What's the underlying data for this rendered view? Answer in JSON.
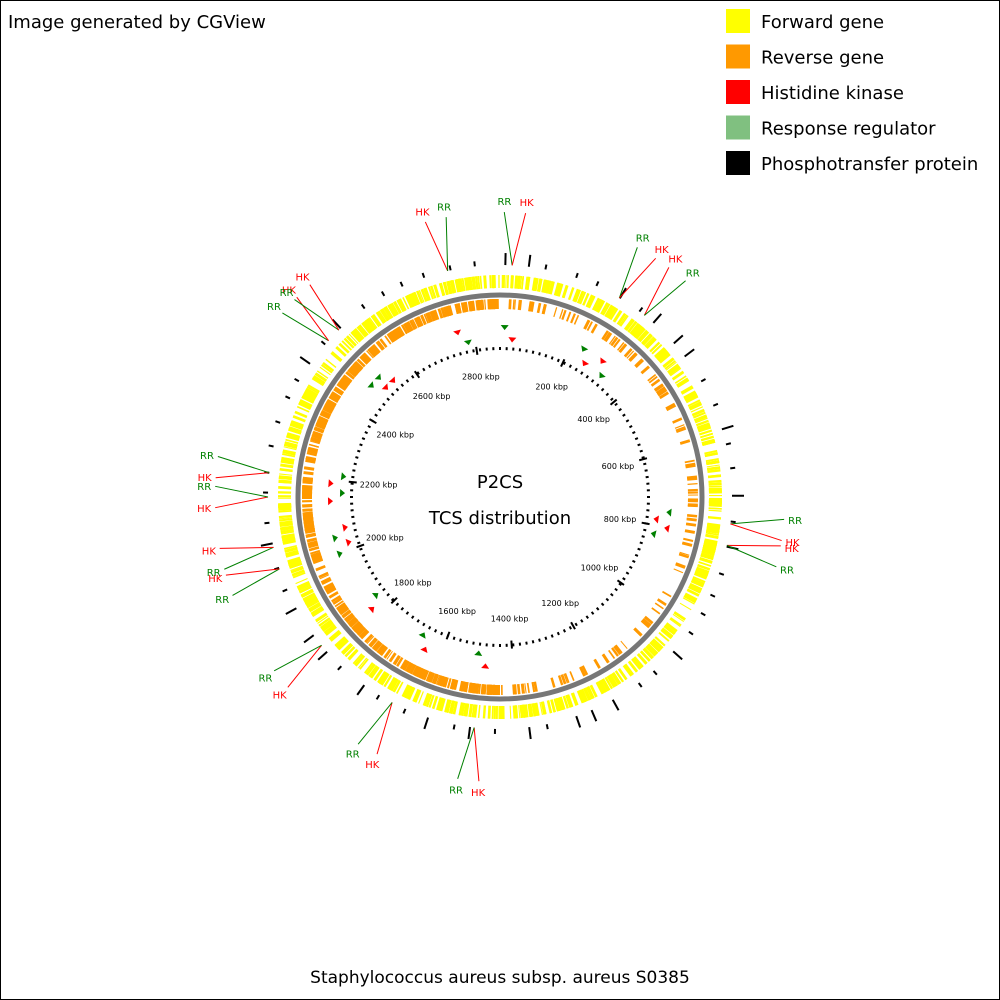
{
  "header": {
    "title": "Image generated by CGView"
  },
  "legend": [
    {
      "label": "Forward gene",
      "color": "#ffff00"
    },
    {
      "label": "Reverse gene",
      "color": "#ff9900"
    },
    {
      "label": "Histidine kinase",
      "color": "#ff0000"
    },
    {
      "label": "Response regulator",
      "color": "#80c080"
    },
    {
      "label": "Phosphotransfer protein",
      "color": "#000000"
    }
  ],
  "map": {
    "title": "P2CS",
    "subtitle": "TCS distribution",
    "lim": [
      0,
      2872
    ],
    "ticks": [
      {
        "value": 200,
        "label": "200 kbp"
      },
      {
        "value": 400,
        "label": "400 kbp"
      },
      {
        "value": 600,
        "label": "600 kbp"
      },
      {
        "value": 800,
        "label": "800 kbp"
      },
      {
        "value": 1000,
        "label": "1000 kbp"
      },
      {
        "value": 1200,
        "label": "1200 kbp"
      },
      {
        "value": 1400,
        "label": "1400 kbp"
      },
      {
        "value": 1600,
        "label": "1600 kbp"
      },
      {
        "value": 1800,
        "label": "1800 kbp"
      },
      {
        "value": 2000,
        "label": "2000 kbp"
      },
      {
        "value": 2200,
        "label": "2200 kbp"
      },
      {
        "value": 2400,
        "label": "2400 kbp"
      },
      {
        "value": 2600,
        "label": "2600 kbp"
      },
      {
        "value": 2800,
        "label": "2800 kbp"
      }
    ],
    "features": [
      {
        "label": "RR",
        "position": 24,
        "color": "#008000"
      },
      {
        "label": "HK",
        "position": 24,
        "color": "#ff0000"
      },
      {
        "label": "RR",
        "position": 247,
        "color": "#008000"
      },
      {
        "label": "HK",
        "position": 247,
        "color": "#ff0000"
      },
      {
        "label": "HK",
        "position": 307,
        "color": "#ff0000"
      },
      {
        "label": "RR",
        "position": 307,
        "color": "#008000"
      },
      {
        "label": "RR",
        "position": 771,
        "color": "#008000"
      },
      {
        "label": "HK",
        "position": 771,
        "color": "#ff0000"
      },
      {
        "label": "HK",
        "position": 814,
        "color": "#ff0000"
      },
      {
        "label": "RR",
        "position": 814,
        "color": "#008000"
      },
      {
        "label": "HK",
        "position": 1487,
        "color": "#ff0000"
      },
      {
        "label": "RR",
        "position": 1487,
        "color": "#008000"
      },
      {
        "label": "HK",
        "position": 1657,
        "color": "#ff0000"
      },
      {
        "label": "RR",
        "position": 1657,
        "color": "#008000"
      },
      {
        "label": "HK",
        "position": 1837,
        "color": "#ff0000"
      },
      {
        "label": "RR",
        "position": 1837,
        "color": "#008000"
      },
      {
        "label": "RR",
        "position": 2010,
        "color": "#008000"
      },
      {
        "label": "HK",
        "position": 2010,
        "color": "#ff0000"
      },
      {
        "label": "RR",
        "position": 2054,
        "color": "#008000"
      },
      {
        "label": "HK",
        "position": 2054,
        "color": "#ff0000"
      },
      {
        "label": "HK",
        "position": 2154,
        "color": "#ff0000"
      },
      {
        "label": "RR",
        "position": 2154,
        "color": "#008000"
      },
      {
        "label": "HK",
        "position": 2202,
        "color": "#ff0000"
      },
      {
        "label": "RR",
        "position": 2202,
        "color": "#008000"
      },
      {
        "label": "RR",
        "position": 2492,
        "color": "#008000"
      },
      {
        "label": "HK",
        "position": 2492,
        "color": "#ff0000"
      },
      {
        "label": "RR",
        "position": 2521,
        "color": "#008000"
      },
      {
        "label": "HK",
        "position": 2521,
        "color": "#ff0000"
      },
      {
        "label": "HK",
        "position": 2768,
        "color": "#ff0000"
      },
      {
        "label": "RR",
        "position": 2768,
        "color": "#008000"
      }
    ]
  },
  "footer": {
    "caption": "Staphylococcus aureus subsp. aureus S0385"
  }
}
